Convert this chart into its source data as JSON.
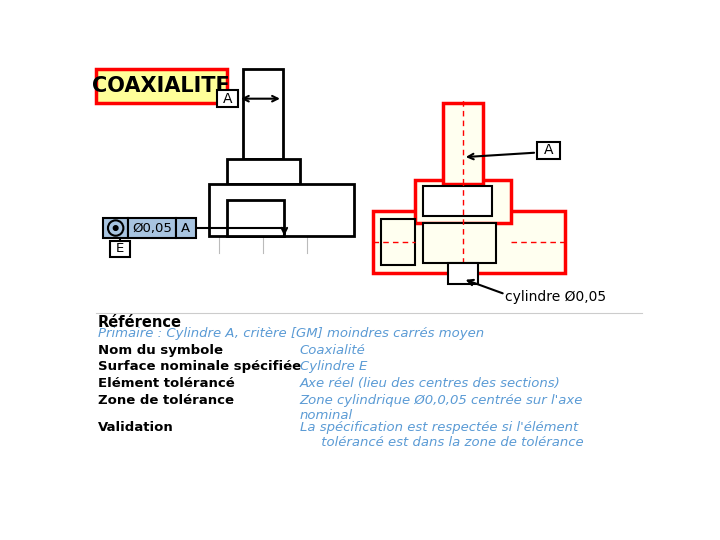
{
  "title": "COAXIALITE",
  "title_bg": "#FFFF99",
  "title_border": "#FF0000",
  "title_text_color": "#000000",
  "white_bg": "#FFFFFF",
  "black": "#000000",
  "red": "#FF0000",
  "blue": "#5B9BD5",
  "light_yellow": "#FFFFF0",
  "light_blue_frame": "#A8C4E0",
  "ref_label": "Référence",
  "primary_label": "Primaire : Cylindre A, critère [GM] moindres carrés moyen",
  "rows": [
    [
      "Nom du symbole",
      "Coaxialité"
    ],
    [
      "Surface nominale spécifiée",
      "Cylindre E"
    ],
    [
      "Elément tolérancé",
      "Axe réel (lieu des centres des sections)"
    ],
    [
      "Zone de tolérance",
      "Zone cylindrique Ø0,0,05 centrée sur l'axe\nnominal"
    ],
    [
      "Validation",
      "La spécification est respectée si l'élément\n     tolérancé est dans la zone de tolérance"
    ]
  ],
  "cylindre_label": "cylindre Ø0,05",
  "tolerance_box": "Ø0,05"
}
